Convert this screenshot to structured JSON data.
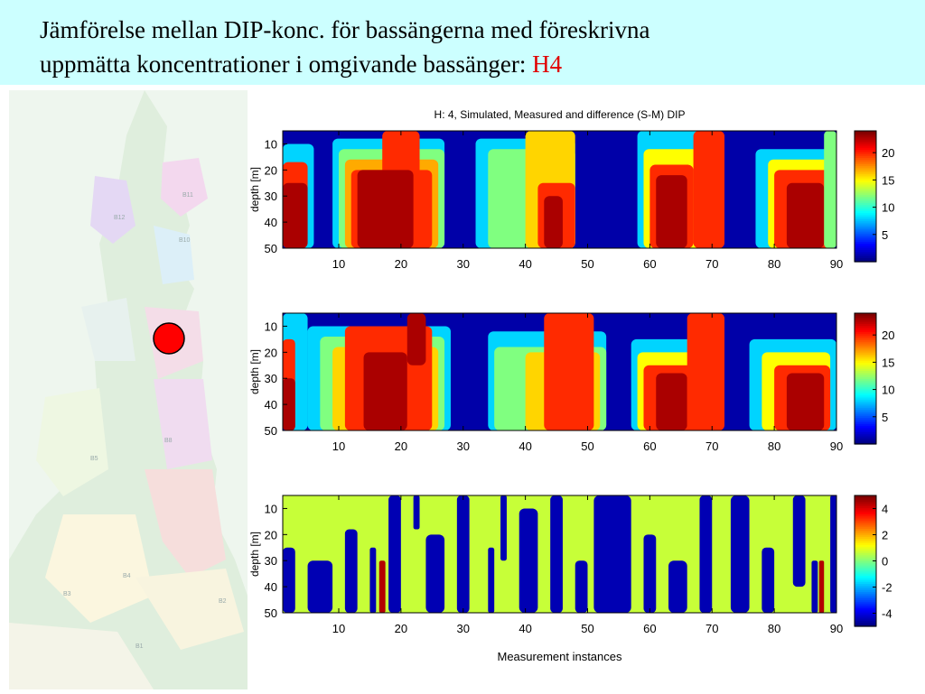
{
  "slide": {
    "title_line1": "Jämförelse mellan DIP-konc. för bassängerna med föreskrivna",
    "title_line2": "uppmätta koncentrationer i omgivande bassänger: ",
    "title_accent": "H4",
    "accent_color": "#e00000",
    "header_bg": "#ccffff"
  },
  "map": {
    "marker_color": "#ff0000",
    "basin_labels": [
      "B10",
      "B11",
      "B12",
      "B8",
      "B5",
      "B4",
      "B2",
      "B1",
      "B3"
    ]
  },
  "chart_data": [
    {
      "type": "heatmap",
      "title": "H: 4, Simulated, Measured and difference (S-M) DIP",
      "xlabel": "",
      "ylabel": "depth [m]",
      "xlim": [
        1,
        90
      ],
      "ylim": [
        50,
        5
      ],
      "x_ticks": [
        10,
        20,
        30,
        40,
        50,
        60,
        70,
        80,
        90
      ],
      "y_ticks": [
        10,
        20,
        30,
        40,
        50
      ],
      "clim": [
        0,
        24
      ],
      "colorbar_ticks": [
        5,
        10,
        15,
        20
      ],
      "patches": [
        {
          "x0": 1,
          "x1": 6,
          "y0": 10,
          "y1": 50,
          "v": 8
        },
        {
          "x0": 1,
          "x1": 5,
          "y0": 17,
          "y1": 50,
          "v": 20
        },
        {
          "x0": 1,
          "x1": 5,
          "y0": 25,
          "y1": 50,
          "v": 23
        },
        {
          "x0": 9,
          "x1": 27,
          "y0": 8,
          "y1": 50,
          "v": 8
        },
        {
          "x0": 10,
          "x1": 27,
          "y0": 12,
          "y1": 50,
          "v": 12
        },
        {
          "x0": 11,
          "x1": 26,
          "y0": 16,
          "y1": 50,
          "v": 17
        },
        {
          "x0": 12,
          "x1": 25,
          "y0": 20,
          "y1": 50,
          "v": 20
        },
        {
          "x0": 17,
          "x1": 23,
          "y0": 5,
          "y1": 50,
          "v": 20
        },
        {
          "x0": 13,
          "x1": 22,
          "y0": 20,
          "y1": 50,
          "v": 23
        },
        {
          "x0": 32,
          "x1": 48,
          "y0": 8,
          "y1": 50,
          "v": 8
        },
        {
          "x0": 34,
          "x1": 48,
          "y0": 12,
          "y1": 50,
          "v": 12
        },
        {
          "x0": 40,
          "x1": 48,
          "y0": 5,
          "y1": 50,
          "v": 16
        },
        {
          "x0": 42,
          "x1": 48,
          "y0": 25,
          "y1": 50,
          "v": 20
        },
        {
          "x0": 43,
          "x1": 46,
          "y0": 30,
          "y1": 50,
          "v": 23
        },
        {
          "x0": 58,
          "x1": 69,
          "y0": 5,
          "y1": 50,
          "v": 8
        },
        {
          "x0": 59,
          "x1": 68,
          "y0": 12,
          "y1": 50,
          "v": 15
        },
        {
          "x0": 60,
          "x1": 67,
          "y0": 18,
          "y1": 50,
          "v": 20
        },
        {
          "x0": 61,
          "x1": 66,
          "y0": 22,
          "y1": 50,
          "v": 23
        },
        {
          "x0": 67,
          "x1": 72,
          "y0": 5,
          "y1": 50,
          "v": 20
        },
        {
          "x0": 77,
          "x1": 90,
          "y0": 12,
          "y1": 50,
          "v": 8
        },
        {
          "x0": 79,
          "x1": 89,
          "y0": 16,
          "y1": 50,
          "v": 15
        },
        {
          "x0": 80,
          "x1": 89,
          "y0": 20,
          "y1": 50,
          "v": 20
        },
        {
          "x0": 82,
          "x1": 88,
          "y0": 25,
          "y1": 50,
          "v": 23
        },
        {
          "x0": 88,
          "x1": 90,
          "y0": 5,
          "y1": 50,
          "v": 12
        }
      ]
    },
    {
      "type": "heatmap",
      "title": "",
      "xlabel": "",
      "ylabel": "depth [m]",
      "xlim": [
        1,
        90
      ],
      "ylim": [
        50,
        5
      ],
      "x_ticks": [
        10,
        20,
        30,
        40,
        50,
        60,
        70,
        80,
        90
      ],
      "y_ticks": [
        10,
        20,
        30,
        40,
        50
      ],
      "clim": [
        0,
        24
      ],
      "colorbar_ticks": [
        5,
        10,
        15,
        20
      ],
      "patches": [
        {
          "x0": 1,
          "x1": 5,
          "y0": 5,
          "y1": 50,
          "v": 8
        },
        {
          "x0": 1,
          "x1": 3,
          "y0": 15,
          "y1": 50,
          "v": 20
        },
        {
          "x0": 1,
          "x1": 3,
          "y0": 30,
          "y1": 50,
          "v": 23
        },
        {
          "x0": 5,
          "x1": 28,
          "y0": 10,
          "y1": 50,
          "v": 8
        },
        {
          "x0": 7,
          "x1": 27,
          "y0": 14,
          "y1": 50,
          "v": 12
        },
        {
          "x0": 9,
          "x1": 26,
          "y0": 18,
          "y1": 50,
          "v": 16
        },
        {
          "x0": 11,
          "x1": 25,
          "y0": 10,
          "y1": 50,
          "v": 20
        },
        {
          "x0": 14,
          "x1": 21,
          "y0": 20,
          "y1": 50,
          "v": 23
        },
        {
          "x0": 21,
          "x1": 24,
          "y0": 5,
          "y1": 25,
          "v": 23
        },
        {
          "x0": 34,
          "x1": 53,
          "y0": 12,
          "y1": 50,
          "v": 8
        },
        {
          "x0": 35,
          "x1": 53,
          "y0": 18,
          "y1": 50,
          "v": 12
        },
        {
          "x0": 40,
          "x1": 52,
          "y0": 20,
          "y1": 50,
          "v": 16
        },
        {
          "x0": 43,
          "x1": 51,
          "y0": 5,
          "y1": 50,
          "v": 20
        },
        {
          "x0": 57,
          "x1": 67,
          "y0": 15,
          "y1": 50,
          "v": 8
        },
        {
          "x0": 58,
          "x1": 67,
          "y0": 20,
          "y1": 50,
          "v": 15
        },
        {
          "x0": 59,
          "x1": 67,
          "y0": 25,
          "y1": 50,
          "v": 20
        },
        {
          "x0": 61,
          "x1": 66,
          "y0": 28,
          "y1": 50,
          "v": 23
        },
        {
          "x0": 66,
          "x1": 72,
          "y0": 5,
          "y1": 50,
          "v": 20
        },
        {
          "x0": 76,
          "x1": 90,
          "y0": 15,
          "y1": 50,
          "v": 8
        },
        {
          "x0": 78,
          "x1": 89,
          "y0": 20,
          "y1": 50,
          "v": 15
        },
        {
          "x0": 80,
          "x1": 89,
          "y0": 25,
          "y1": 50,
          "v": 20
        },
        {
          "x0": 82,
          "x1": 88,
          "y0": 28,
          "y1": 50,
          "v": 23
        }
      ]
    },
    {
      "type": "heatmap",
      "title": "",
      "xlabel": "Measurement instances",
      "ylabel": "depth [m]",
      "xlim": [
        1,
        90
      ],
      "ylim": [
        50,
        5
      ],
      "x_ticks": [
        10,
        20,
        30,
        40,
        50,
        60,
        70,
        80,
        90
      ],
      "y_ticks": [
        10,
        20,
        30,
        40,
        50
      ],
      "clim": [
        -5,
        5
      ],
      "colorbar_ticks": [
        -4,
        -2,
        0,
        2,
        4
      ],
      "background_value": 0.7,
      "patches": [
        {
          "x0": 1,
          "x1": 3,
          "y0": 25,
          "y1": 50,
          "v": -4.5
        },
        {
          "x0": 5,
          "x1": 9,
          "y0": 30,
          "y1": 50,
          "v": -4.5
        },
        {
          "x0": 11,
          "x1": 13,
          "y0": 18,
          "y1": 50,
          "v": -4.5
        },
        {
          "x0": 15,
          "x1": 16,
          "y0": 25,
          "y1": 50,
          "v": -4.5
        },
        {
          "x0": 16.5,
          "x1": 17.5,
          "y0": 30,
          "y1": 50,
          "v": 4.5
        },
        {
          "x0": 18,
          "x1": 20,
          "y0": 5,
          "y1": 50,
          "v": -4.5
        },
        {
          "x0": 22,
          "x1": 23,
          "y0": 5,
          "y1": 18,
          "v": -4.5
        },
        {
          "x0": 24,
          "x1": 27,
          "y0": 20,
          "y1": 50,
          "v": -4.5
        },
        {
          "x0": 29,
          "x1": 31,
          "y0": 5,
          "y1": 50,
          "v": -4.5
        },
        {
          "x0": 34,
          "x1": 35,
          "y0": 25,
          "y1": 50,
          "v": -4.5
        },
        {
          "x0": 36,
          "x1": 37,
          "y0": 5,
          "y1": 30,
          "v": -4.5
        },
        {
          "x0": 39,
          "x1": 42,
          "y0": 10,
          "y1": 50,
          "v": -4.5
        },
        {
          "x0": 44,
          "x1": 46,
          "y0": 5,
          "y1": 50,
          "v": -4.5
        },
        {
          "x0": 48,
          "x1": 50,
          "y0": 30,
          "y1": 50,
          "v": -4.5
        },
        {
          "x0": 51,
          "x1": 57,
          "y0": 5,
          "y1": 50,
          "v": -4.5
        },
        {
          "x0": 59,
          "x1": 61,
          "y0": 20,
          "y1": 50,
          "v": -4.5
        },
        {
          "x0": 63,
          "x1": 66,
          "y0": 30,
          "y1": 50,
          "v": -4.5
        },
        {
          "x0": 68,
          "x1": 70,
          "y0": 5,
          "y1": 50,
          "v": -4.5
        },
        {
          "x0": 73,
          "x1": 76,
          "y0": 5,
          "y1": 50,
          "v": -4.5
        },
        {
          "x0": 78,
          "x1": 80,
          "y0": 25,
          "y1": 50,
          "v": -4.5
        },
        {
          "x0": 83,
          "x1": 85,
          "y0": 5,
          "y1": 40,
          "v": -4.5
        },
        {
          "x0": 86,
          "x1": 87,
          "y0": 30,
          "y1": 50,
          "v": -4.5
        },
        {
          "x0": 87.2,
          "x1": 88,
          "y0": 30,
          "y1": 50,
          "v": 4.5
        },
        {
          "x0": 89,
          "x1": 90,
          "y0": 5,
          "y1": 50,
          "v": -4.5
        }
      ]
    }
  ]
}
